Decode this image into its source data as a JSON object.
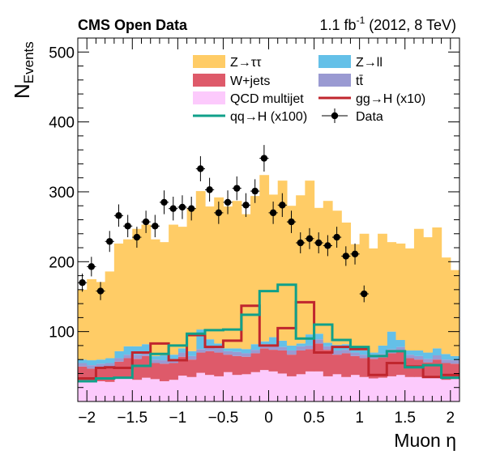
{
  "chart_data": {
    "type": "bar",
    "title": "CMS Open Data",
    "lumi_prefix": "1.1 fb",
    "lumi_exp": "-1",
    "lumi_suffix": " (2012, 8 TeV)",
    "ylabel_main": "N",
    "ylabel_sub": "Events",
    "xlabel": "Muon η",
    "xlim": [
      -2.1,
      2.1
    ],
    "ylim": [
      0,
      520
    ],
    "xticks": [
      -2,
      -1.5,
      -1,
      -0.5,
      0,
      0.5,
      1,
      1.5,
      2
    ],
    "xtick_labels": [
      "−2",
      "−1.5",
      "−1",
      "−0.5",
      "0",
      "0.5",
      "1",
      "1.5",
      "2"
    ],
    "yticks": [
      100,
      200,
      300,
      400,
      500
    ],
    "ytick_labels": [
      "100",
      "200",
      "300",
      "400",
      "500"
    ],
    "bins": {
      "min": -2.1,
      "max": 2.1,
      "count": 42
    },
    "stack": [
      {
        "key": "qcd",
        "name": "QCD multijet",
        "color": "#fccafc",
        "values": [
          30,
          28,
          29,
          28,
          33,
          33,
          31,
          34,
          32,
          29,
          31,
          37,
          35,
          41,
          38,
          36,
          42,
          38,
          39,
          42,
          45,
          43,
          40,
          36,
          39,
          43,
          43,
          36,
          39,
          35,
          38,
          35,
          33,
          34,
          36,
          38,
          35,
          35,
          34,
          34,
          31,
          32
        ]
      },
      {
        "key": "wjets",
        "name": "W+jets",
        "color": "#de5a6a",
        "values": [
          20,
          19,
          19,
          22,
          24,
          29,
          30,
          31,
          23,
          25,
          24,
          27,
          25,
          29,
          34,
          34,
          25,
          27,
          25,
          27,
          31,
          31,
          33,
          31,
          34,
          32,
          40,
          38,
          28,
          34,
          27,
          27,
          28,
          29,
          33,
          35,
          27,
          25,
          22,
          26,
          24,
          22
        ]
      },
      {
        "key": "ttbar",
        "name": "tt̄",
        "color": "#9a9ad2",
        "values": [
          5,
          5,
          6,
          5,
          5,
          5,
          6,
          5,
          5,
          5,
          6,
          6,
          5,
          5,
          5,
          6,
          5,
          6,
          5,
          5,
          6,
          5,
          5,
          6,
          6,
          5,
          6,
          5,
          6,
          5,
          5,
          5,
          6,
          5,
          6,
          5,
          5,
          5,
          5,
          6,
          5,
          5
        ]
      },
      {
        "key": "zll",
        "name": "Z→ll",
        "color": "#64c0e8",
        "values": [
          5,
          7,
          6,
          7,
          10,
          12,
          12,
          12,
          5,
          7,
          6,
          6,
          7,
          28,
          12,
          7,
          4,
          5,
          6,
          8,
          4,
          13,
          9,
          7,
          4,
          16,
          8,
          5,
          8,
          8,
          5,
          6,
          3,
          12,
          25,
          10,
          6,
          8,
          9,
          10,
          8,
          6
        ]
      },
      {
        "key": "ztt",
        "name": "Z→ττ",
        "color": "#ffcc66",
        "values": [
          100,
          116,
          111,
          124,
          154,
          153,
          168,
          171,
          167,
          162,
          186,
          174,
          205,
          198,
          190,
          209,
          203,
          211,
          193,
          212,
          238,
          204,
          229,
          200,
          212,
          220,
          180,
          203,
          192,
          174,
          150,
          167,
          149,
          160,
          128,
          138,
          146,
          174,
          165,
          173,
          138,
          123
        ]
      }
    ],
    "lines": [
      {
        "key": "ggh",
        "name": "gg→H (x10)",
        "color": "#c0262e",
        "values": [
          33,
          33,
          48,
          49,
          48,
          48,
          70,
          70,
          83,
          83,
          59,
          59,
          95,
          95,
          78,
          78,
          87,
          87,
          137,
          137,
          80,
          80,
          105,
          105,
          142,
          142,
          70,
          70,
          78,
          78,
          75,
          75,
          38,
          38,
          55,
          55,
          50,
          50,
          35,
          35,
          38,
          38
        ]
      },
      {
        "key": "qqh",
        "name": "qq→H (x100)",
        "color": "#10a08a",
        "values": [
          29,
          29,
          33,
          33,
          34,
          34,
          51,
          51,
          68,
          68,
          80,
          80,
          97,
          97,
          102,
          102,
          103,
          103,
          124,
          124,
          158,
          158,
          167,
          167,
          90,
          90,
          110,
          110,
          88,
          88,
          78,
          78,
          65,
          65,
          72,
          72,
          49,
          49,
          52,
          52,
          34,
          34
        ]
      }
    ],
    "data": {
      "name": "Data",
      "x": [
        -2.05,
        -1.95,
        -1.85,
        -1.75,
        -1.65,
        -1.55,
        -1.45,
        -1.35,
        -1.25,
        -1.15,
        -1.05,
        -0.95,
        -0.85,
        -0.75,
        -0.65,
        -0.55,
        -0.45,
        -0.35,
        -0.25,
        -0.15,
        -0.05,
        0.05,
        0.15,
        0.25,
        0.35,
        0.45,
        0.55,
        0.65,
        0.75,
        0.85,
        0.95,
        1.05,
        1.15,
        1.25,
        1.35,
        1.45,
        1.55,
        1.65,
        1.75,
        1.85,
        1.95,
        2.05
      ],
      "y": [
        170,
        193,
        158,
        229,
        266,
        251,
        235,
        257,
        251,
        285,
        276,
        278,
        276,
        333,
        303,
        270,
        285,
        305,
        281,
        301,
        348,
        270,
        281,
        257,
        227,
        233,
        227,
        223,
        235,
        208,
        211,
        154,
        0,
        0,
        0,
        0,
        0,
        0,
        0,
        0,
        0,
        0
      ],
      "err": [
        13,
        14,
        13,
        15,
        16,
        16,
        15,
        16,
        16,
        17,
        17,
        17,
        17,
        18,
        17,
        16,
        17,
        17,
        17,
        17,
        19,
        16,
        17,
        16,
        15,
        15,
        15,
        15,
        15,
        14,
        15,
        12,
        0,
        0,
        0,
        0,
        0,
        0,
        0,
        0,
        0,
        0
      ]
    },
    "legend": {
      "placement": "top-center",
      "entries": [
        {
          "key": "ztt",
          "label": "Z→ττ",
          "kind": "box",
          "color": "#ffcc66"
        },
        {
          "key": "zll",
          "label": "Z→ll",
          "kind": "box",
          "color": "#64c0e8"
        },
        {
          "key": "wjets",
          "label": "W+jets",
          "kind": "box",
          "color": "#de5a6a"
        },
        {
          "key": "ttbar",
          "label": "tt̄",
          "kind": "box",
          "color": "#9a9ad2"
        },
        {
          "key": "qcd",
          "label": "QCD multijet",
          "kind": "box",
          "color": "#fccafc"
        },
        {
          "key": "ggh",
          "label": "gg→H (x10)",
          "kind": "line",
          "color": "#c0262e"
        },
        {
          "key": "qqh",
          "label": "qq→H (x100)",
          "kind": "line",
          "color": "#10a08a"
        },
        {
          "key": "data",
          "label": "Data",
          "kind": "marker",
          "color": "#000000"
        }
      ]
    },
    "grid": false
  }
}
